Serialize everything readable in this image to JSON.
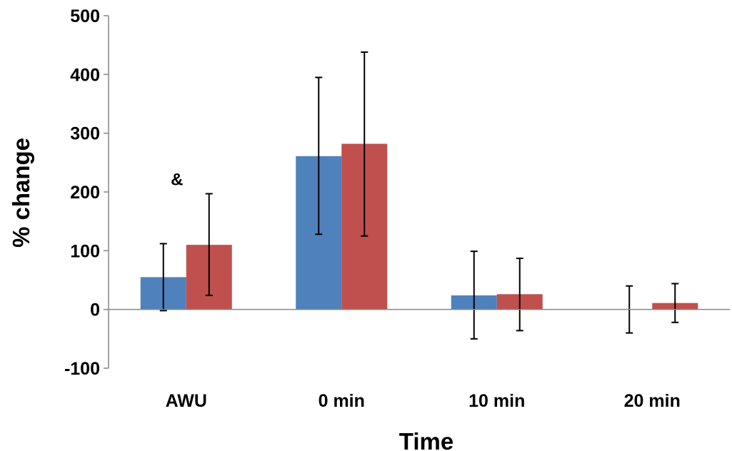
{
  "chart_data": {
    "type": "bar",
    "title": "",
    "xlabel": "Time",
    "ylabel": "% change",
    "ylim": [
      -100,
      500
    ],
    "yticks": [
      -100,
      0,
      100,
      200,
      300,
      400,
      500
    ],
    "categories": [
      "AWU",
      "0 min",
      "10 min",
      "20 min"
    ],
    "grid": false,
    "legend": "none",
    "series": [
      {
        "color": "#4F81BD",
        "values": [
          55,
          261,
          24,
          0
        ],
        "error_low": [
          -2,
          128,
          -50,
          -40
        ],
        "error_high": [
          112,
          395,
          99,
          40
        ]
      },
      {
        "color": "#C0504D",
        "values": [
          110,
          282,
          26,
          11
        ],
        "error_low": [
          24,
          125,
          -36,
          -22
        ],
        "error_high": [
          197,
          438,
          87,
          44
        ]
      }
    ],
    "annotations": [
      {
        "text": "&",
        "category": "AWU",
        "value": 232
      }
    ]
  }
}
